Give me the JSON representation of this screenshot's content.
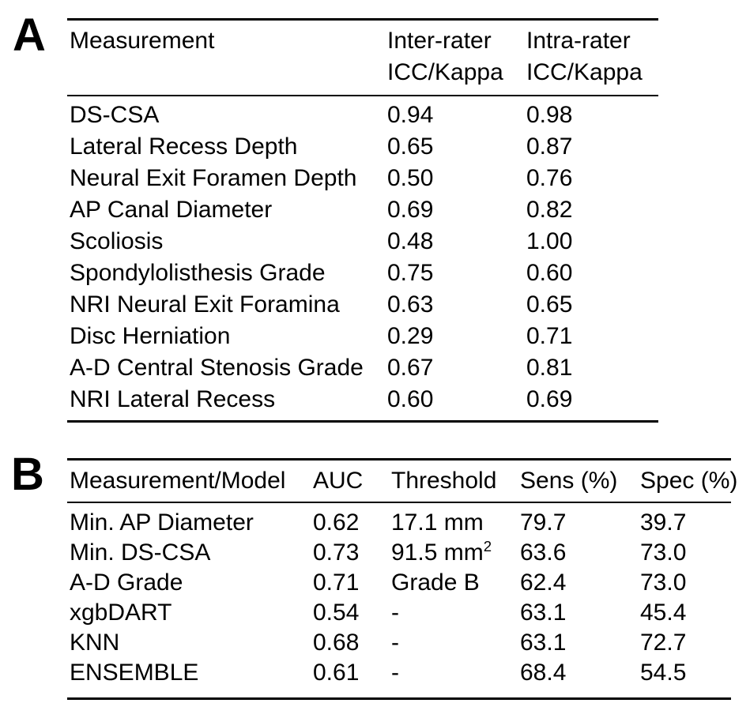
{
  "page": {
    "background_color": "#ffffff",
    "text_color": "#000000",
    "rule_color": "#000000"
  },
  "panelA": {
    "label": "A",
    "header": {
      "col1": "Measurement",
      "col2_line1": "Inter-rater",
      "col2_line2": "ICC/Kappa",
      "col3_line1": "Intra-rater",
      "col3_line2": "ICC/Kappa"
    },
    "rows": [
      {
        "measurement": "DS-CSA",
        "inter": "0.94",
        "intra": "0.98"
      },
      {
        "measurement": "Lateral Recess Depth",
        "inter": "0.65",
        "intra": "0.87"
      },
      {
        "measurement": "Neural Exit Foramen Depth",
        "inter": "0.50",
        "intra": "0.76"
      },
      {
        "measurement": "AP Canal Diameter",
        "inter": "0.69",
        "intra": "0.82"
      },
      {
        "measurement": "Scoliosis",
        "inter": "0.48",
        "intra": "1.00"
      },
      {
        "measurement": "Spondylolisthesis Grade",
        "inter": "0.75",
        "intra": "0.60"
      },
      {
        "measurement": "NRI Neural Exit Foramina",
        "inter": "0.63",
        "intra": "0.65"
      },
      {
        "measurement": "Disc Herniation",
        "inter": "0.29",
        "intra": "0.71"
      },
      {
        "measurement": "A-D Central Stenosis Grade",
        "inter": "0.67",
        "intra": "0.81"
      },
      {
        "measurement": "NRI Lateral Recess",
        "inter": "0.60",
        "intra": "0.69"
      }
    ]
  },
  "panelB": {
    "label": "B",
    "header": {
      "col1": "Measurement/Model",
      "col2": "AUC",
      "col3": "Threshold",
      "col4": "Sens (%)",
      "col5": "Spec (%)"
    },
    "rows": [
      {
        "model": "Min. AP Diameter",
        "auc": "0.62",
        "threshold": "17.1 mm",
        "threshold_sup": "",
        "sens": "79.7",
        "spec": "39.7"
      },
      {
        "model": "Min. DS-CSA",
        "auc": "0.73",
        "threshold": "91.5 mm",
        "threshold_sup": "2",
        "sens": "63.6",
        "spec": "73.0"
      },
      {
        "model": "A-D Grade",
        "auc": "0.71",
        "threshold": "Grade B",
        "threshold_sup": "",
        "sens": "62.4",
        "spec": "73.0"
      },
      {
        "model": "xgbDART",
        "auc": "0.54",
        "threshold": "-",
        "threshold_sup": "",
        "sens": "63.1",
        "spec": "45.4"
      },
      {
        "model": "KNN",
        "auc": "0.68",
        "threshold": "-",
        "threshold_sup": "",
        "sens": "63.1",
        "spec": "72.7"
      },
      {
        "model": "ENSEMBLE",
        "auc": "0.61",
        "threshold": "-",
        "threshold_sup": "",
        "sens": "68.4",
        "spec": "54.5"
      }
    ]
  }
}
